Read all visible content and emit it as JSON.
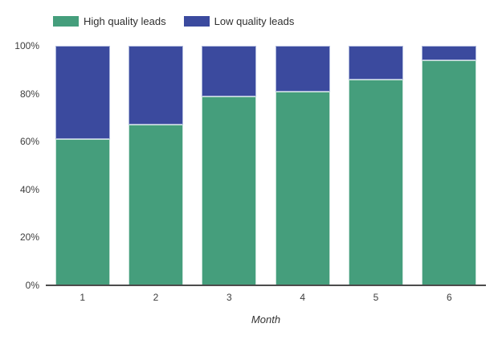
{
  "legend": {
    "items": [
      {
        "label": "High quality leads",
        "color": "#459e7c"
      },
      {
        "label": "Low quality leads",
        "color": "#3b4a9e"
      }
    ]
  },
  "chart_data": {
    "type": "bar",
    "stacked": true,
    "categories": [
      "1",
      "2",
      "3",
      "4",
      "5",
      "6"
    ],
    "series": [
      {
        "name": "High quality leads",
        "color": "#459e7c",
        "values": [
          61,
          67,
          79,
          81,
          86,
          94
        ]
      },
      {
        "name": "Low quality leads",
        "color": "#3b4a9e",
        "values": [
          39,
          33,
          21,
          19,
          14,
          6
        ]
      }
    ],
    "title": "",
    "xlabel": "Month",
    "ylabel": "",
    "ylim": [
      0,
      100
    ],
    "y_ticks": [
      "0%",
      "20%",
      "40%",
      "60%",
      "80%",
      "100%"
    ],
    "y_tick_values": [
      0,
      20,
      40,
      60,
      80,
      100
    ],
    "grid": false,
    "legend_position": "top",
    "value_unit": "%"
  }
}
